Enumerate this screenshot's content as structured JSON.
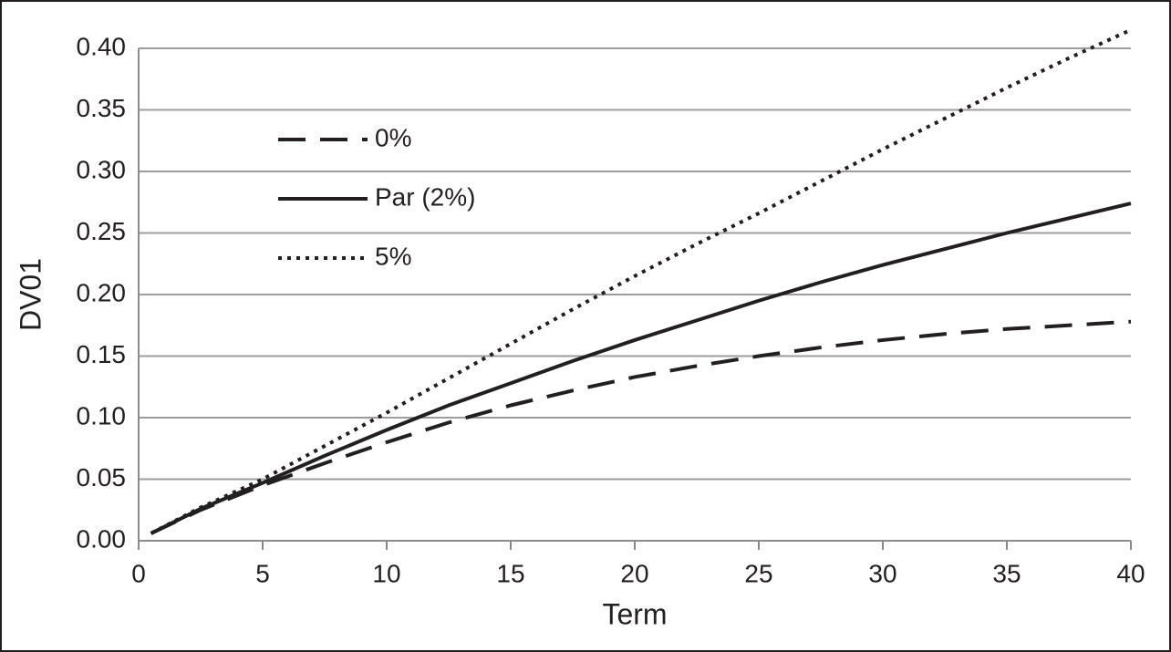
{
  "chart_data": {
    "type": "line",
    "x_label": "Term",
    "y_label": "DV01",
    "x": [
      0.5,
      2.5,
      5,
      7.5,
      10,
      12.5,
      15,
      17.5,
      20,
      22.5,
      25,
      27.5,
      30,
      32.5,
      35,
      37.5,
      40
    ],
    "series": [
      {
        "name": "0%",
        "color": "#231f20",
        "dash": "dashed",
        "values": [
          0.006,
          0.025,
          0.045,
          0.063,
          0.08,
          0.096,
          0.11,
          0.122,
          0.133,
          0.142,
          0.15,
          0.157,
          0.163,
          0.168,
          0.172,
          0.175,
          0.178
        ]
      },
      {
        "name": "Par (2%)",
        "color": "#231f20",
        "dash": "solid",
        "values": [
          0.006,
          0.026,
          0.047,
          0.069,
          0.09,
          0.11,
          0.128,
          0.146,
          0.163,
          0.179,
          0.195,
          0.21,
          0.224,
          0.237,
          0.25,
          0.262,
          0.274
        ]
      },
      {
        "name": "5%",
        "color": "#231f20",
        "dash": "dotted",
        "values": [
          0.006,
          0.027,
          0.05,
          0.077,
          0.104,
          0.132,
          0.16,
          0.188,
          0.215,
          0.241,
          0.266,
          0.292,
          0.318,
          0.343,
          0.368,
          0.392,
          0.415
        ]
      }
    ],
    "xlim": [
      0,
      40
    ],
    "xticks": [
      0,
      5,
      10,
      15,
      20,
      25,
      30,
      35,
      40
    ],
    "ylim": [
      0,
      0.4
    ],
    "yticks": [
      {
        "value": 0,
        "label": "0.00"
      },
      {
        "value": 0.05,
        "label": "0.05"
      },
      {
        "value": 0.1,
        "label": "0.10"
      },
      {
        "value": 0.15,
        "label": "0.15"
      },
      {
        "value": 0.2,
        "label": "0.20"
      },
      {
        "value": 0.25,
        "label": "0.25"
      },
      {
        "value": 0.3,
        "label": "0.30"
      },
      {
        "value": 0.35,
        "label": "0.35"
      },
      {
        "value": 0.4,
        "label": "0.40"
      }
    ],
    "grid": true,
    "legend": "upper-left"
  }
}
